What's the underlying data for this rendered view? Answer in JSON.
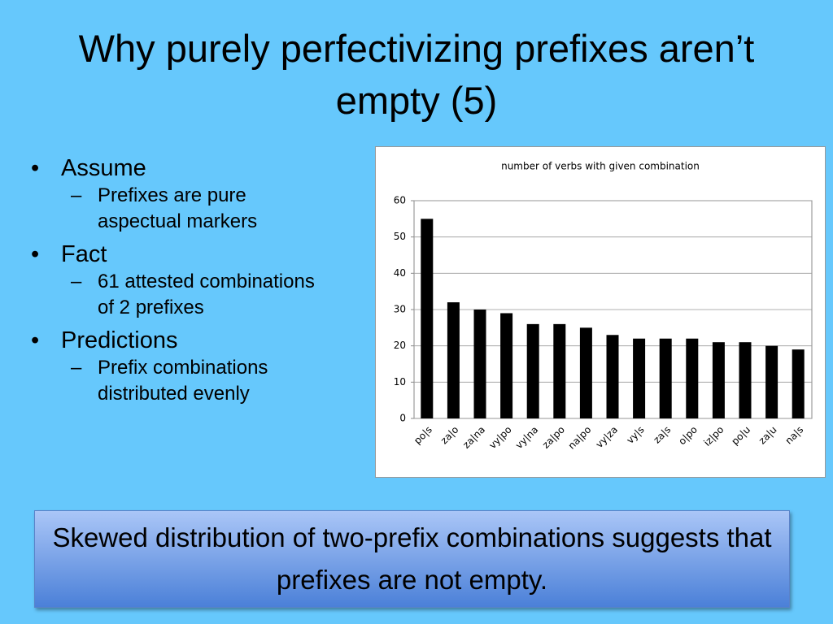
{
  "title": "Why purely perfectivizing prefixes aren’t empty (5)",
  "bullets": [
    {
      "text": "Assume",
      "sub": [
        "Prefixes are pure aspectual markers"
      ]
    },
    {
      "text": "Fact",
      "sub": [
        "61 attested combinations of 2 prefixes"
      ]
    },
    {
      "text": "Predictions",
      "sub": [
        "Prefix combinations distributed evenly"
      ]
    }
  ],
  "chart_data": {
    "type": "bar",
    "title": "number of verbs with given combination",
    "categories": [
      "po|s",
      "za|o",
      "za|na",
      "vy|po",
      "vy|na",
      "za|po",
      "na|po",
      "vy|za",
      "vy|s",
      "za|s",
      "o|po",
      "iz|po",
      "po|u",
      "za|u",
      "na|s"
    ],
    "values": [
      55,
      32,
      30,
      29,
      26,
      26,
      25,
      23,
      22,
      22,
      22,
      21,
      21,
      20,
      19
    ],
    "color": "#000000",
    "ylim": [
      0,
      60
    ],
    "yticks": [
      0,
      10,
      20,
      30,
      40,
      50,
      60
    ],
    "grid": true
  },
  "callout": "Skewed distribution of two-prefix combinations suggests that prefixes are not empty."
}
